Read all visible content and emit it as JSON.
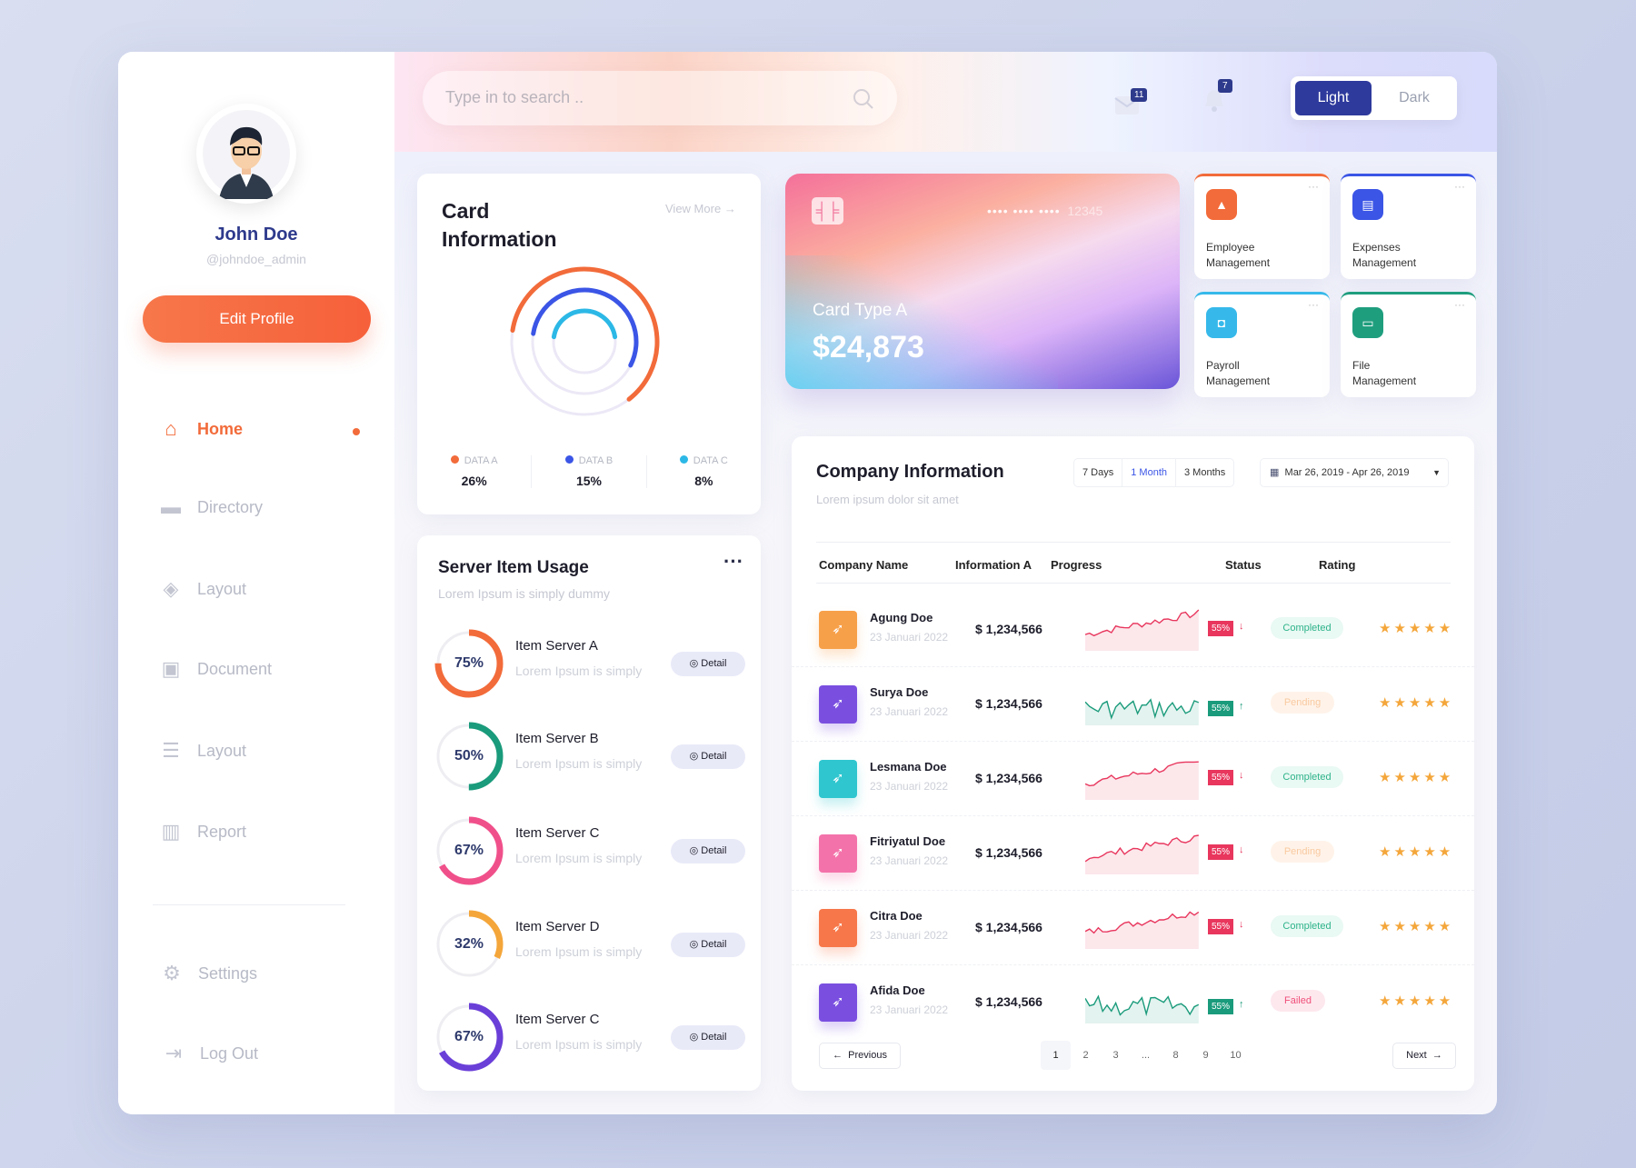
{
  "profile": {
    "name": "John Doe",
    "handle": "@johndoe_admin",
    "edit_label": "Edit Profile"
  },
  "sidebar": {
    "items": [
      {
        "label": "Home",
        "icon": "home-icon",
        "active": true
      },
      {
        "label": "Directory",
        "icon": "folder-icon"
      },
      {
        "label": "Layout",
        "icon": "layers-icon"
      },
      {
        "label": "Document",
        "icon": "archive-icon"
      },
      {
        "label": "Layout",
        "icon": "list-icon"
      },
      {
        "label": "Report",
        "icon": "bar-chart-icon"
      }
    ],
    "settings": "Settings",
    "logout": "Log Out"
  },
  "topbar": {
    "search_placeholder": "Type in to search ..",
    "mail_count": "11",
    "bell_count": "7",
    "theme_light": "Light",
    "theme_dark": "Dark"
  },
  "card_info": {
    "title_1": "Card",
    "title_2": "Information",
    "view_more": "View More",
    "legend": [
      {
        "label": "DATA A",
        "value": "26%",
        "color": "#f26b3a",
        "pct": 26
      },
      {
        "label": "DATA B",
        "value": "15%",
        "color": "#3b55e6",
        "pct": 15
      },
      {
        "label": "DATA C",
        "value": "8%",
        "color": "#2cb8e6",
        "pct": 8
      }
    ]
  },
  "credit_card": {
    "mask": "•••• •••• ••••",
    "last": "12345",
    "type": "Card Type A",
    "amount": "$24,873"
  },
  "tiles": [
    {
      "label_1": "Employee",
      "label_2": "Management",
      "color": "#f26b3a",
      "icon": "image-icon"
    },
    {
      "label_1": "Expenses",
      "label_2": "Management",
      "color": "#3b55e6",
      "icon": "document-icon"
    },
    {
      "label_1": "Payroll",
      "label_2": "Management",
      "color": "#36b9ea",
      "icon": "bag-icon"
    },
    {
      "label_1": "File",
      "label_2": "Management",
      "color": "#1f9e7e",
      "icon": "card-icon"
    }
  ],
  "server": {
    "title": "Server Item Usage",
    "subtitle": "Lorem Ipsum is simply dummy",
    "detail_label": "Detail",
    "items": [
      {
        "name": "Item Server A",
        "desc": "Lorem Ipsum is simply",
        "pct": 75,
        "label": "75%",
        "color": "#f26b3a"
      },
      {
        "name": "Item Server B",
        "desc": "Lorem Ipsum is simply",
        "pct": 50,
        "label": "50%",
        "color": "#1a9b7b"
      },
      {
        "name": "Item Server C",
        "desc": "Lorem Ipsum is simply",
        "pct": 67,
        "label": "67%",
        "color": "#f0508a"
      },
      {
        "name": "Item Server D",
        "desc": "Lorem Ipsum is simply",
        "pct": 32,
        "label": "32%",
        "color": "#f4a63a"
      },
      {
        "name": "Item Server C",
        "desc": "Lorem Ipsum is simply",
        "pct": 67,
        "label": "67%",
        "color": "#6a3fd8"
      }
    ]
  },
  "company": {
    "title": "Company Information",
    "subtitle": "Lorem ipsum dolor sit amet",
    "ranges": [
      "7 Days",
      "1 Month",
      "3 Months"
    ],
    "active_range": "1 Month",
    "date_range": "Mar 26, 2019 - Apr 26, 2019",
    "columns": [
      "Company Name",
      "Information A",
      "Progress",
      "Status",
      "Rating"
    ],
    "rows": [
      {
        "name": "Agung Doe",
        "date": "23 Januari 2022",
        "info": "$ 1,234,566",
        "progress": "55%",
        "trend": "down",
        "status": "Completed",
        "rating": 5,
        "color": "#f7a04a"
      },
      {
        "name": "Surya Doe",
        "date": "23 Januari 2022",
        "info": "$ 1,234,566",
        "progress": "55%",
        "trend": "up",
        "status": "Pending",
        "rating": 5,
        "color": "#7a4fe0"
      },
      {
        "name": "Lesmana Doe",
        "date": "23 Januari 2022",
        "info": "$ 1,234,566",
        "progress": "55%",
        "trend": "down",
        "status": "Completed",
        "rating": 5,
        "color": "#2fc6cf"
      },
      {
        "name": "Fitriyatul Doe",
        "date": "23 Januari 2022",
        "info": "$ 1,234,566",
        "progress": "55%",
        "trend": "down",
        "status": "Pending",
        "rating": 5,
        "color": "#f472aa"
      },
      {
        "name": "Citra Doe",
        "date": "23 Januari 2022",
        "info": "$ 1,234,566",
        "progress": "55%",
        "trend": "down",
        "status": "Completed",
        "rating": 5,
        "color": "#f7774a"
      },
      {
        "name": "Afida Doe",
        "date": "23 Januari 2022",
        "info": "$ 1,234,566",
        "progress": "55%",
        "trend": "up",
        "status": "Failed",
        "rating": 5,
        "color": "#7a4fe0"
      }
    ],
    "pagination": {
      "prev": "Previous",
      "next": "Next",
      "pages": [
        "1",
        "2",
        "3",
        "...",
        "8",
        "9",
        "10"
      ],
      "current": "1"
    }
  }
}
